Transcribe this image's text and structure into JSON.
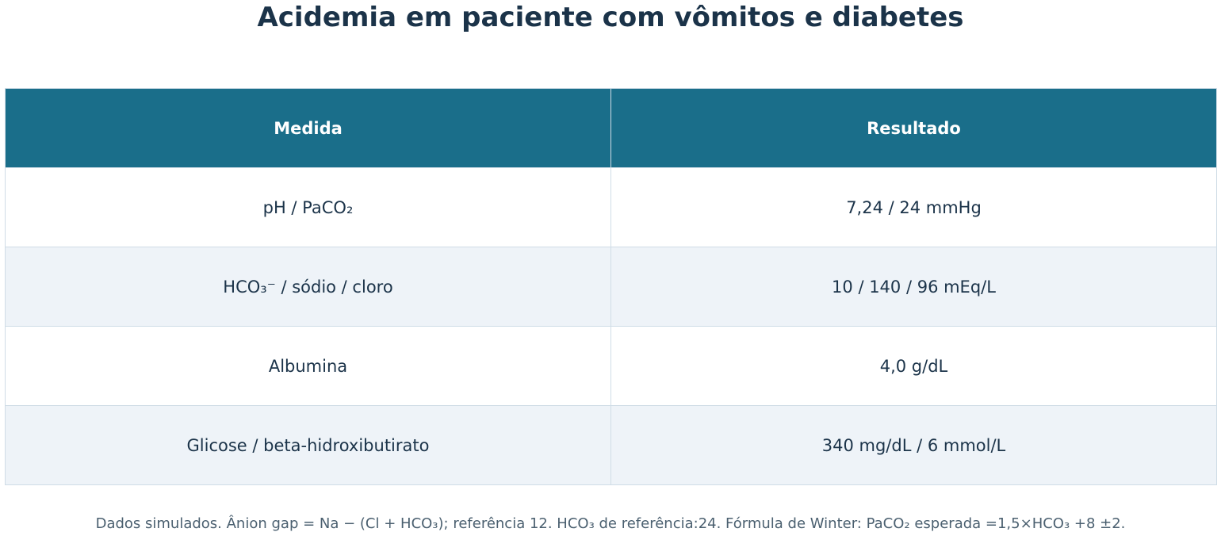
{
  "title": "Acidemia em paciente com vômitos e diabetes",
  "table": {
    "header": [
      "Medida",
      "Resultado"
    ],
    "rows": [
      [
        "pH / PaCO₂",
        "7,24 / 24 mmHg"
      ],
      [
        "HCO₃⁻ / sódio / cloro",
        "10 / 140 / 96 mEq/L"
      ],
      [
        "Albumina",
        "4,0 g/dL"
      ],
      [
        "Glicose / beta-hidroxibutirato",
        "340 mg/dL / 6 mmol/L"
      ]
    ]
  },
  "footnote": "Dados simulados. Ânion gap = Na − (Cl + HCO₃); referência 12. HCO₃ de referência:24. Fórmula de Winter: PaCO₂ esperada =1,5×HCO₃ +8 ±2."
}
